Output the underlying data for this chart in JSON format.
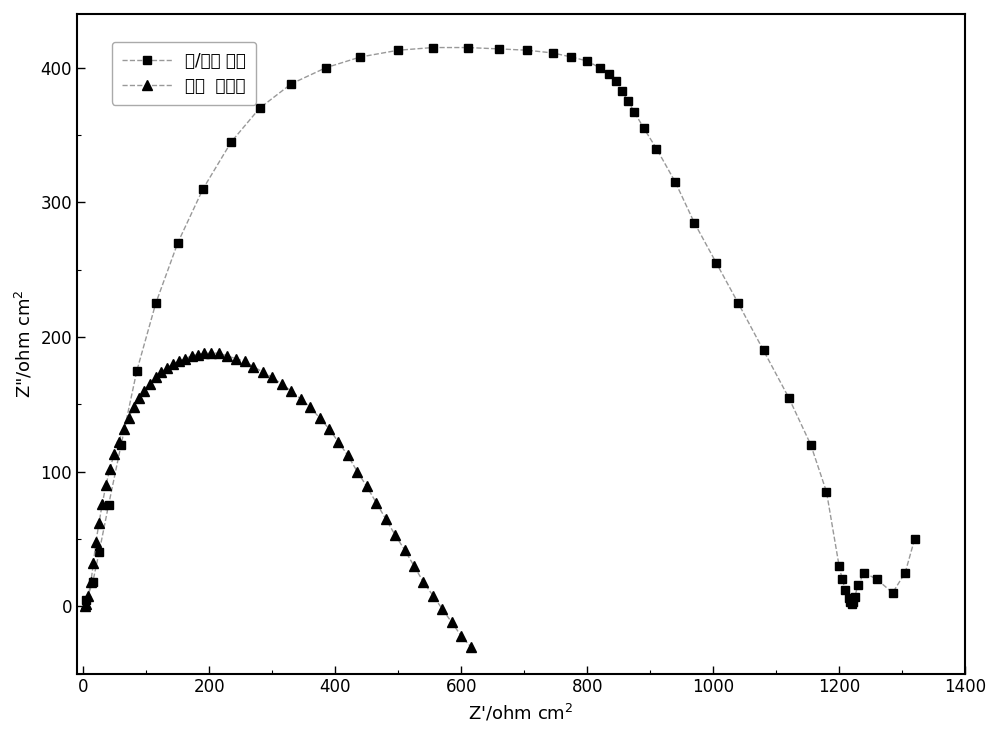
{
  "title": "",
  "xlabel": "Z'/ohm cm$^2$",
  "ylabel": "Z\"/ohm cm$^2$",
  "xlim": [
    -10,
    1400
  ],
  "ylim": [
    -50,
    440
  ],
  "xticks": [
    0,
    200,
    400,
    600,
    800,
    1000,
    1200,
    1400
  ],
  "yticks": [
    0,
    100,
    200,
    300,
    400
  ],
  "series1_label": "钛/硒转 化膜",
  "series2_label": "空白  铝合金",
  "series1_x": [
    5,
    15,
    25,
    40,
    60,
    85,
    115,
    150,
    190,
    235,
    280,
    330,
    385,
    440,
    500,
    555,
    610,
    660,
    705,
    745,
    775,
    800,
    820,
    835,
    845,
    855,
    865,
    875,
    890,
    910,
    940,
    970,
    1005,
    1040,
    1080,
    1120,
    1155,
    1180,
    1200,
    1205,
    1210,
    1215,
    1218,
    1220,
    1222,
    1225,
    1230,
    1240,
    1260,
    1285,
    1305,
    1320
  ],
  "series1_y": [
    5,
    18,
    40,
    75,
    120,
    175,
    225,
    270,
    310,
    345,
    370,
    388,
    400,
    408,
    413,
    415,
    415,
    414,
    413,
    411,
    408,
    405,
    400,
    395,
    390,
    383,
    375,
    367,
    355,
    340,
    315,
    285,
    255,
    225,
    190,
    155,
    120,
    85,
    30,
    20,
    12,
    6,
    3,
    2,
    3,
    7,
    16,
    25,
    20,
    10,
    25,
    50
  ],
  "series2_x": [
    2,
    5,
    8,
    12,
    16,
    20,
    25,
    30,
    36,
    42,
    49,
    56,
    64,
    72,
    80,
    88,
    97,
    106,
    115,
    124,
    133,
    142,
    152,
    162,
    172,
    182,
    192,
    202,
    215,
    228,
    242,
    256,
    270,
    285,
    300,
    315,
    330,
    345,
    360,
    375,
    390,
    405,
    420,
    435,
    450,
    465,
    480,
    495,
    510,
    525,
    540,
    555,
    570,
    585,
    600,
    615
  ],
  "series2_y": [
    0,
    2,
    8,
    18,
    32,
    48,
    62,
    76,
    90,
    102,
    113,
    122,
    132,
    140,
    148,
    155,
    160,
    165,
    170,
    174,
    177,
    180,
    182,
    184,
    186,
    187,
    188,
    188,
    188,
    186,
    184,
    182,
    178,
    174,
    170,
    165,
    160,
    154,
    148,
    140,
    132,
    122,
    112,
    100,
    89,
    77,
    65,
    53,
    42,
    30,
    18,
    8,
    -2,
    -12,
    -22,
    -30
  ],
  "line_color": "#999999",
  "marker_color": "#000000",
  "background_color": "#ffffff"
}
